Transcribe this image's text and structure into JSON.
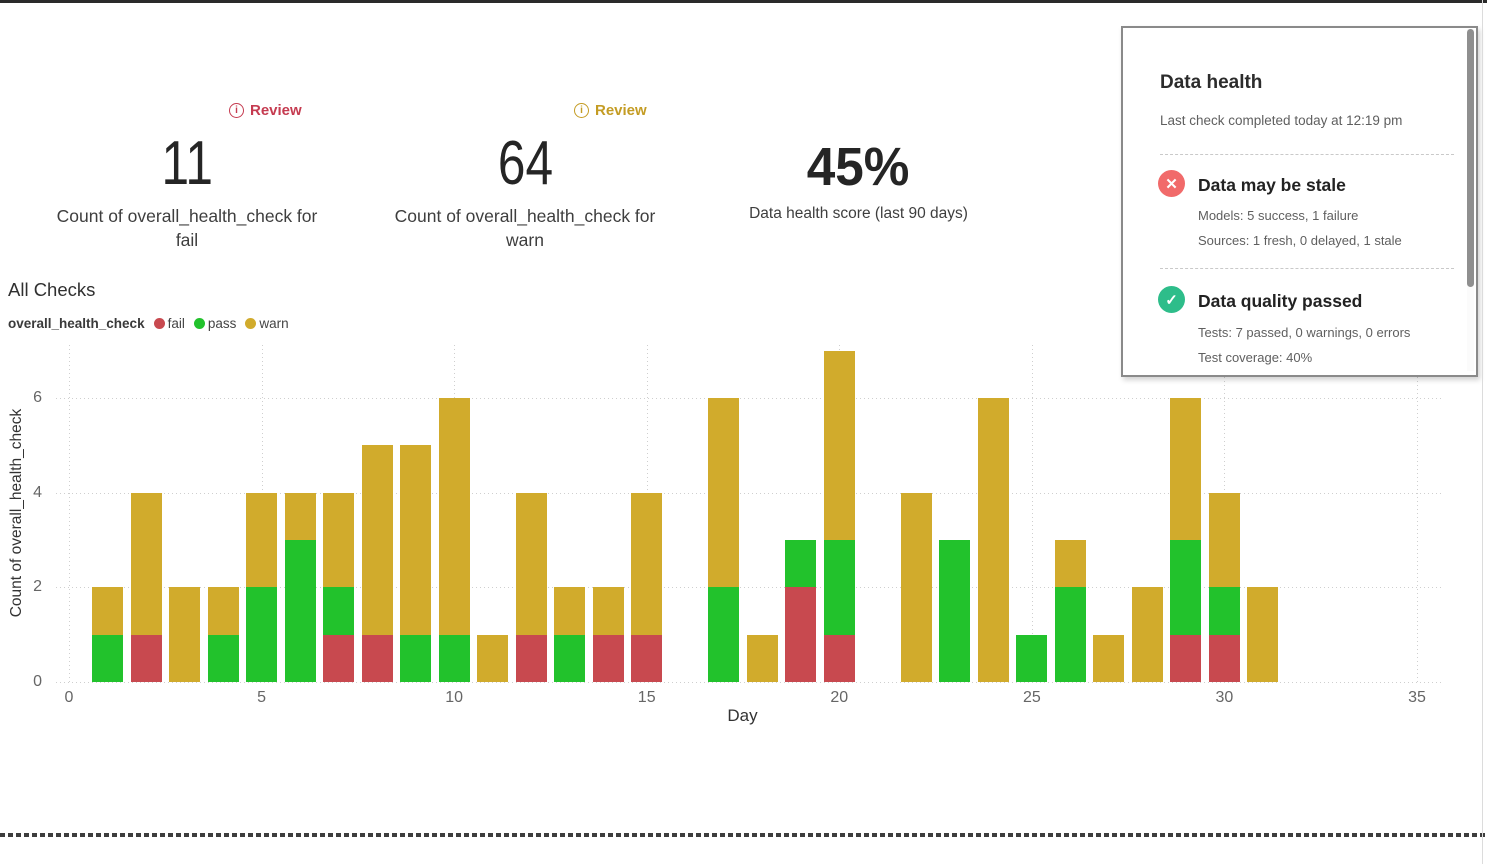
{
  "metrics": {
    "fail": {
      "review_label": "Review",
      "review_color": "#c53b50",
      "value": "11",
      "label": "Count of overall_health_check for fail"
    },
    "warn": {
      "review_label": "Review",
      "review_color": "#c49c24",
      "value": "64",
      "label": "Count of overall_health_check for warn"
    },
    "score": {
      "value": "45%",
      "label": "Data health score (last 90 days)"
    }
  },
  "chart_title": "All Checks",
  "chart_data": {
    "type": "bar",
    "stacked": true,
    "title": "All Checks",
    "legend_field": "overall_health_check",
    "xlabel": "Day",
    "ylabel": "Count of overall_health_check",
    "x_ticks": [
      0,
      5,
      10,
      15,
      20,
      25,
      30,
      35
    ],
    "y_ticks": [
      0,
      2,
      4,
      6
    ],
    "xlim": [
      0,
      35
    ],
    "ylim": [
      0,
      7.1
    ],
    "grid": true,
    "legend_position": "top-left",
    "days": [
      1,
      2,
      3,
      4,
      5,
      6,
      7,
      8,
      9,
      10,
      11,
      12,
      13,
      14,
      15,
      16,
      17,
      18,
      19,
      20,
      21,
      22,
      23,
      24,
      25,
      26,
      27,
      28,
      29,
      30,
      31
    ],
    "series": [
      {
        "name": "fail",
        "color": "#c8494f",
        "values": [
          0,
          1,
          0,
          0,
          0,
          0,
          1,
          1,
          0,
          0,
          0,
          1,
          0,
          1,
          1,
          0,
          0,
          0,
          2,
          1,
          0,
          0,
          0,
          0,
          0,
          0,
          0,
          0,
          1,
          1,
          0
        ]
      },
      {
        "name": "pass",
        "color": "#22c22c",
        "values": [
          1,
          0,
          0,
          1,
          2,
          3,
          1,
          0,
          1,
          1,
          0,
          0,
          1,
          0,
          0,
          0,
          2,
          0,
          1,
          2,
          0,
          0,
          3,
          0,
          1,
          2,
          0,
          0,
          2,
          1,
          0
        ]
      },
      {
        "name": "warn",
        "color": "#d1ab2c",
        "values": [
          1,
          3,
          2,
          1,
          2,
          1,
          2,
          4,
          4,
          5,
          1,
          3,
          1,
          1,
          3,
          0,
          4,
          1,
          0,
          4,
          0,
          4,
          0,
          6,
          0,
          1,
          1,
          2,
          3,
          2,
          2
        ]
      }
    ],
    "legend": [
      {
        "label": "fail",
        "color": "#c8494f"
      },
      {
        "label": "pass",
        "color": "#22c22c"
      },
      {
        "label": "warn",
        "color": "#d1ab2c"
      }
    ]
  },
  "panel": {
    "title": "Data health",
    "subtitle": "Last check completed today at 12:19 pm",
    "sections": [
      {
        "icon": "x-icon",
        "glyph": "✕",
        "icon_color": "#f16a6a",
        "title": "Data may be stale",
        "lines": [
          "Models: 5 success, 1 failure",
          "Sources: 1 fresh, 0 delayed, 1 stale"
        ]
      },
      {
        "icon": "check-icon",
        "glyph": "✓",
        "icon_color": "#2ebd8a",
        "title": "Data quality passed",
        "lines": [
          "Tests: 7 passed, 0 warnings, 0 errors",
          "Test coverage: 40%"
        ]
      }
    ]
  }
}
